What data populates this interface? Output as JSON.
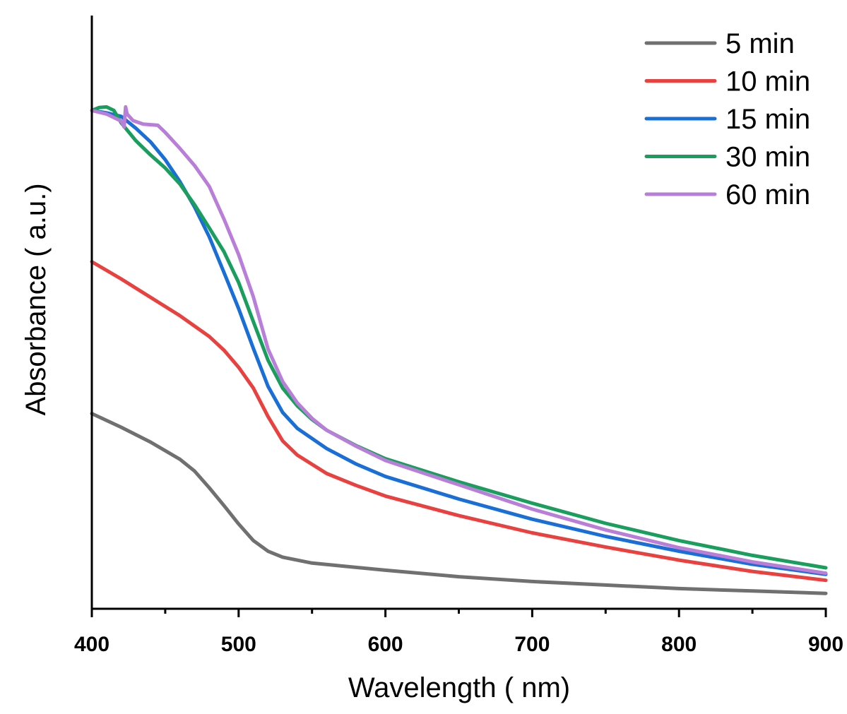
{
  "chart_data": {
    "type": "line",
    "xlabel": "Wavelength ( nm)",
    "ylabel": "Absorbance ( a.u.)",
    "xlim": [
      400,
      900
    ],
    "ylim": [
      0,
      1
    ],
    "x_ticks": [
      400,
      500,
      600,
      700,
      800,
      900
    ],
    "x_minor_ticks": [
      450,
      550,
      650,
      750,
      850
    ],
    "y_tick_labels": "none",
    "grid": false,
    "legend_position": "top-right",
    "series": [
      {
        "name": "5 min",
        "color": "#707070",
        "points": [
          [
            400,
            0.329
          ],
          [
            420,
            0.306
          ],
          [
            440,
            0.281
          ],
          [
            460,
            0.252
          ],
          [
            470,
            0.232
          ],
          [
            480,
            0.204
          ],
          [
            490,
            0.174
          ],
          [
            500,
            0.143
          ],
          [
            510,
            0.115
          ],
          [
            520,
            0.097
          ],
          [
            530,
            0.087
          ],
          [
            550,
            0.077
          ],
          [
            600,
            0.065
          ],
          [
            650,
            0.054
          ],
          [
            700,
            0.046
          ],
          [
            750,
            0.04
          ],
          [
            800,
            0.034
          ],
          [
            850,
            0.03
          ],
          [
            900,
            0.026
          ]
        ]
      },
      {
        "name": "10 min",
        "color": "#e8413f",
        "points": [
          [
            400,
            0.585
          ],
          [
            420,
            0.556
          ],
          [
            440,
            0.525
          ],
          [
            460,
            0.494
          ],
          [
            480,
            0.459
          ],
          [
            490,
            0.436
          ],
          [
            500,
            0.407
          ],
          [
            510,
            0.372
          ],
          [
            520,
            0.324
          ],
          [
            530,
            0.283
          ],
          [
            540,
            0.259
          ],
          [
            560,
            0.228
          ],
          [
            580,
            0.208
          ],
          [
            600,
            0.19
          ],
          [
            650,
            0.157
          ],
          [
            700,
            0.128
          ],
          [
            750,
            0.104
          ],
          [
            800,
            0.082
          ],
          [
            850,
            0.063
          ],
          [
            900,
            0.048
          ]
        ]
      },
      {
        "name": "15 min",
        "color": "#1a6fd6",
        "points": [
          [
            400,
            0.84
          ],
          [
            410,
            0.836
          ],
          [
            420,
            0.83
          ],
          [
            430,
            0.81
          ],
          [
            440,
            0.787
          ],
          [
            450,
            0.757
          ],
          [
            460,
            0.72
          ],
          [
            470,
            0.677
          ],
          [
            480,
            0.627
          ],
          [
            490,
            0.567
          ],
          [
            500,
            0.506
          ],
          [
            510,
            0.439
          ],
          [
            520,
            0.375
          ],
          [
            530,
            0.331
          ],
          [
            540,
            0.304
          ],
          [
            560,
            0.27
          ],
          [
            580,
            0.244
          ],
          [
            600,
            0.223
          ],
          [
            650,
            0.185
          ],
          [
            700,
            0.151
          ],
          [
            750,
            0.122
          ],
          [
            800,
            0.097
          ],
          [
            850,
            0.075
          ],
          [
            900,
            0.058
          ]
        ]
      },
      {
        "name": "30 min",
        "color": "#1a9e5e",
        "points": [
          [
            400,
            0.84
          ],
          [
            405,
            0.845
          ],
          [
            410,
            0.846
          ],
          [
            415,
            0.84
          ],
          [
            420,
            0.819
          ],
          [
            430,
            0.789
          ],
          [
            440,
            0.765
          ],
          [
            450,
            0.743
          ],
          [
            460,
            0.716
          ],
          [
            470,
            0.681
          ],
          [
            480,
            0.642
          ],
          [
            490,
            0.602
          ],
          [
            500,
            0.55
          ],
          [
            510,
            0.484
          ],
          [
            520,
            0.419
          ],
          [
            530,
            0.372
          ],
          [
            540,
            0.342
          ],
          [
            550,
            0.319
          ],
          [
            560,
            0.301
          ],
          [
            580,
            0.275
          ],
          [
            600,
            0.253
          ],
          [
            650,
            0.214
          ],
          [
            700,
            0.178
          ],
          [
            750,
            0.144
          ],
          [
            800,
            0.115
          ],
          [
            850,
            0.09
          ],
          [
            900,
            0.069
          ]
        ]
      },
      {
        "name": "60 min",
        "color": "#b97ed8",
        "points": [
          [
            400,
            0.84
          ],
          [
            410,
            0.834
          ],
          [
            420,
            0.822
          ],
          [
            422,
            0.812
          ],
          [
            423,
            0.846
          ],
          [
            424,
            0.834
          ],
          [
            428,
            0.823
          ],
          [
            435,
            0.817
          ],
          [
            445,
            0.815
          ],
          [
            450,
            0.803
          ],
          [
            460,
            0.776
          ],
          [
            470,
            0.747
          ],
          [
            480,
            0.712
          ],
          [
            490,
            0.657
          ],
          [
            500,
            0.597
          ],
          [
            510,
            0.526
          ],
          [
            520,
            0.438
          ],
          [
            530,
            0.383
          ],
          [
            540,
            0.347
          ],
          [
            550,
            0.321
          ],
          [
            560,
            0.301
          ],
          [
            580,
            0.274
          ],
          [
            600,
            0.25
          ],
          [
            650,
            0.209
          ],
          [
            700,
            0.168
          ],
          [
            750,
            0.133
          ],
          [
            800,
            0.103
          ],
          [
            850,
            0.079
          ],
          [
            900,
            0.06
          ]
        ]
      }
    ]
  }
}
